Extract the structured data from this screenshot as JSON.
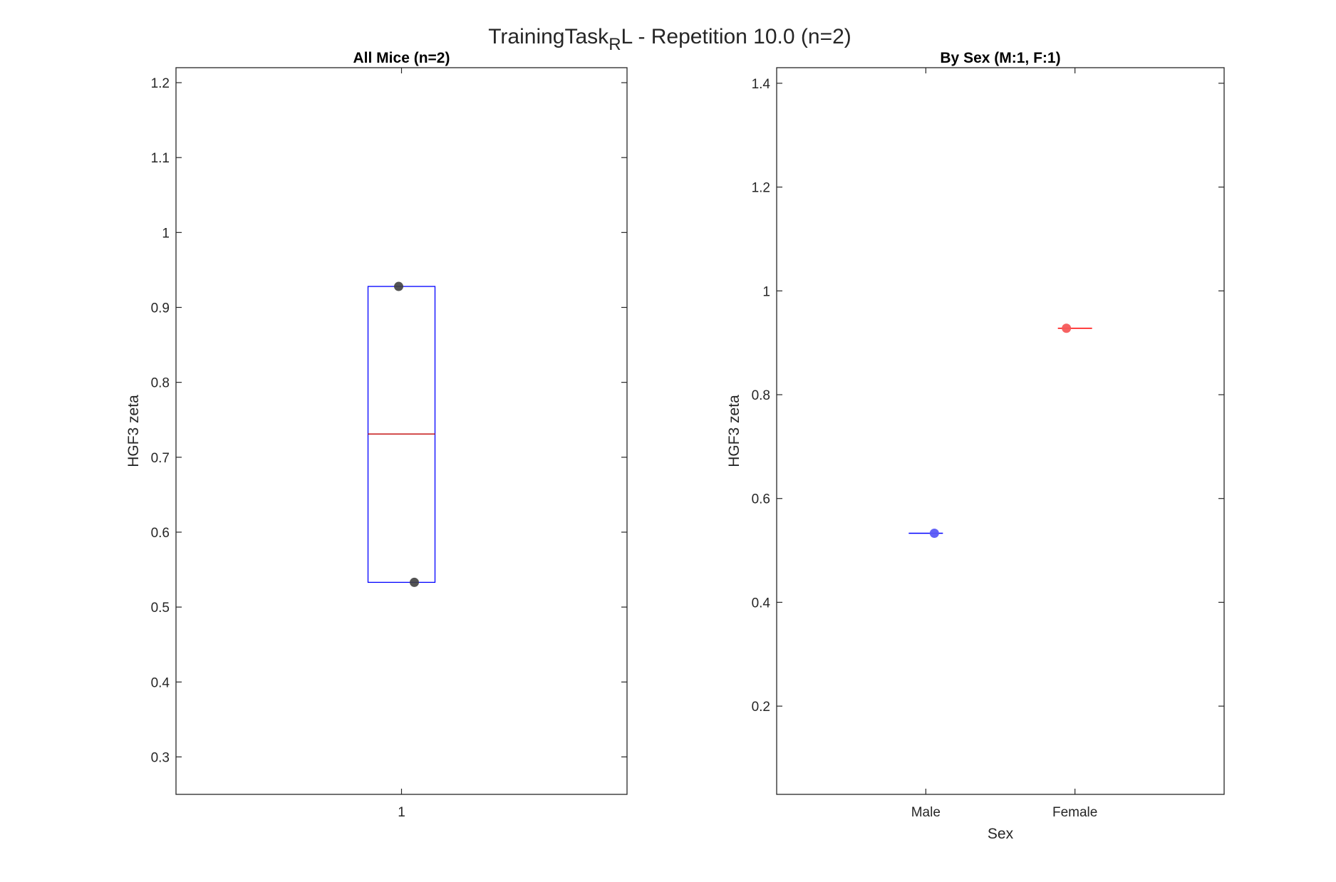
{
  "figure": {
    "title_main": "TrainingTask",
    "title_sub": "R",
    "title_rest": "L - Repetition 10.0 (n=2)"
  },
  "chart_data": [
    {
      "type": "box",
      "title": "All Mice (n=2)",
      "ylabel": "HGF3 zeta",
      "xlabel": "",
      "ylim": [
        0.25,
        1.22
      ],
      "yticks": [
        "0.3",
        "0.4",
        "0.5",
        "0.6",
        "0.7",
        "0.8",
        "0.9",
        "1",
        "1.1",
        "1.2"
      ],
      "categories": [
        "1"
      ],
      "box": {
        "q1": 0.533,
        "median": 0.731,
        "q3": 0.928,
        "box_color": "#0000ff",
        "median_color": "#c00000"
      },
      "points": [
        {
          "category": "1",
          "y": 0.928,
          "color": "#404040"
        },
        {
          "category": "1",
          "y": 0.533,
          "color": "#404040"
        }
      ],
      "grid": false
    },
    {
      "type": "box",
      "title": "By Sex (M:1, F:1)",
      "ylabel": "HGF3 zeta",
      "xlabel": "Sex",
      "ylim": [
        0.03,
        1.43
      ],
      "yticks": [
        "0.2",
        "0.4",
        "0.6",
        "0.8",
        "1",
        "1.2",
        "1.4"
      ],
      "categories": [
        "Male",
        "Female"
      ],
      "series": [
        {
          "category": "Male",
          "median": 0.533,
          "color": "#0000ff",
          "point_color": "#5a5af5",
          "y": 0.533
        },
        {
          "category": "Female",
          "median": 0.928,
          "color": "#ff0000",
          "point_color": "#f55a5a",
          "y": 0.928
        }
      ],
      "grid": false
    }
  ]
}
